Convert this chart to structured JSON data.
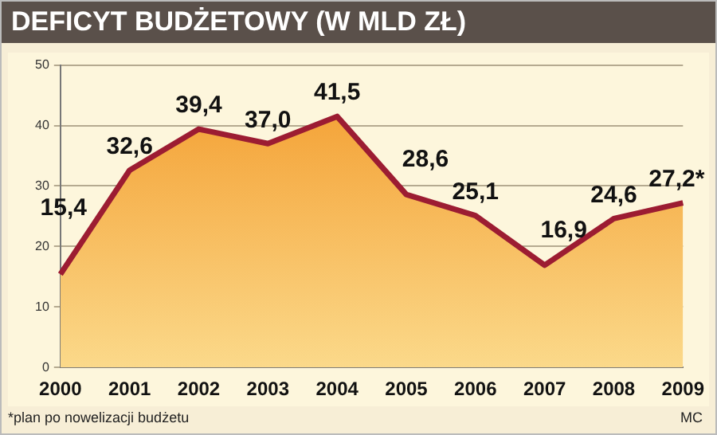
{
  "chart_data": {
    "type": "area",
    "title": "DEFICYT BUDŻETOWY (W MLD ZŁ)",
    "categories": [
      "2000",
      "2001",
      "2002",
      "2003",
      "2004",
      "2005",
      "2006",
      "2007",
      "2008",
      "2009"
    ],
    "series": [
      {
        "color": "#9c1c32",
        "values": [
          15.4,
          32.6,
          39.4,
          37.0,
          41.5,
          28.6,
          25.1,
          16.9,
          24.6,
          27.2
        ],
        "value_labels": [
          "15,4",
          "32,6",
          "39,4",
          "37,0",
          "41,5",
          "28,6",
          "25,1",
          "16,9",
          "24,6",
          "27,2*"
        ]
      }
    ],
    "ylim": [
      0,
      50
    ],
    "yticks": [
      0,
      10,
      20,
      30,
      40,
      50
    ],
    "grid": "y",
    "legend": false,
    "marker": "none",
    "annotations": [
      "*plan po nowelizacji budżetu",
      "MC"
    ]
  }
}
